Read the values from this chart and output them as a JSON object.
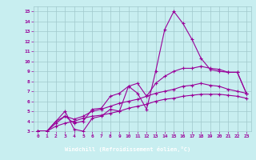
{
  "bg_color": "#c8eef0",
  "grid_color": "#a0c8cc",
  "line_color": "#990099",
  "xlabel": "Windchill (Refroidissement éolien,°C)",
  "xlabel_bg": "#660066",
  "xlabel_fg": "#ffffff",
  "xlim": [
    -0.5,
    23.5
  ],
  "ylim": [
    3,
    15.5
  ],
  "xtick_labels": [
    "0",
    "1",
    "2",
    "3",
    "4",
    "5",
    "6",
    "7",
    "8",
    "9",
    "10",
    "11",
    "12",
    "13",
    "14",
    "15",
    "16",
    "17",
    "18",
    "19",
    "20",
    "21",
    "22",
    "23"
  ],
  "ytick_labels": [
    "3",
    "4",
    "5",
    "6",
    "7",
    "8",
    "9",
    "10",
    "11",
    "12",
    "13",
    "14",
    "15"
  ],
  "series": [
    [
      3.0,
      3.0,
      4.0,
      5.0,
      3.2,
      3.0,
      4.3,
      4.5,
      5.2,
      5.0,
      7.5,
      6.8,
      5.2,
      9.0,
      13.2,
      15.0,
      13.8,
      12.2,
      10.3,
      9.2,
      9.0,
      8.9,
      8.9,
      6.8
    ],
    [
      3.0,
      3.0,
      4.0,
      4.5,
      3.8,
      4.0,
      5.2,
      5.3,
      6.5,
      6.8,
      7.5,
      7.8,
      6.5,
      7.8,
      8.5,
      9.0,
      9.3,
      9.3,
      9.5,
      9.3,
      9.2,
      8.9,
      8.9,
      6.8
    ],
    [
      3.0,
      3.0,
      3.8,
      4.5,
      4.2,
      4.5,
      5.0,
      5.2,
      5.5,
      5.8,
      6.0,
      6.2,
      6.5,
      6.8,
      7.0,
      7.2,
      7.5,
      7.6,
      7.8,
      7.6,
      7.5,
      7.2,
      7.0,
      6.8
    ],
    [
      3.0,
      3.0,
      3.5,
      3.8,
      4.0,
      4.3,
      4.5,
      4.6,
      4.8,
      5.0,
      5.3,
      5.5,
      5.7,
      6.0,
      6.2,
      6.3,
      6.5,
      6.6,
      6.7,
      6.7,
      6.7,
      6.6,
      6.5,
      6.3
    ]
  ]
}
